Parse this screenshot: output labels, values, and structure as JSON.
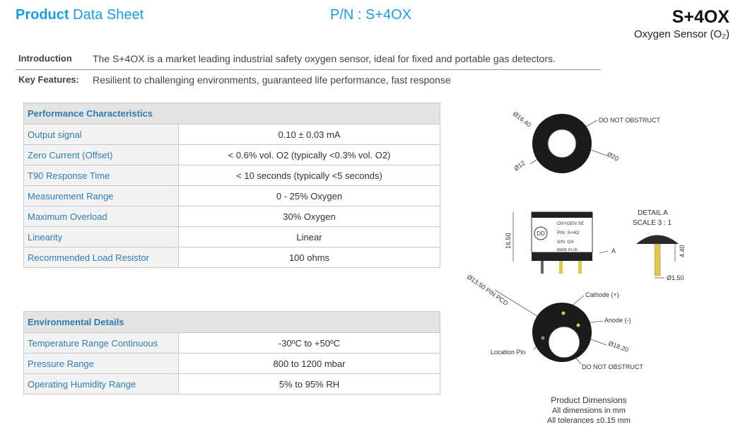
{
  "header": {
    "product": "Product",
    "data_sheet": "Data Sheet",
    "part_number": "P/N : S+4OX",
    "model": "S+4OX",
    "subtitle": "Oxygen Sensor (O₂)"
  },
  "intro": {
    "label": "Introduction",
    "text": "The S+4OX is a market leading industrial safety oxygen sensor, ideal for fixed and portable gas detectors."
  },
  "features": {
    "label": "Key Features:",
    "text": "Resilient to challenging environments, guaranteed life performance, fast response"
  },
  "performance": {
    "title": "Performance Characteristics",
    "rows": [
      [
        "Output signal",
        "0.10 ± 0.03 mA"
      ],
      [
        "Zero Current (Offset)",
        "< 0.6% vol. O2 (typically <0.3% vol. O2)"
      ],
      [
        "T90 Response Time",
        "< 10 seconds (typically <5 seconds)"
      ],
      [
        "Measurement Range",
        "0 - 25% Oxygen"
      ],
      [
        "Maximum Overload",
        "30% Oxygen"
      ],
      [
        "Linearity",
        "Linear"
      ],
      [
        "Recommended Load Resistor",
        "100 ohms"
      ]
    ]
  },
  "environmental": {
    "title": "Environmental Details",
    "rows": [
      [
        "Temperature Range Continuous",
        "-30ºC to +50ºC"
      ],
      [
        "Pressure Range",
        "800 to 1200 mbar"
      ],
      [
        "Operating Humidity Range",
        "5% to 95% RH"
      ]
    ]
  },
  "drawing": {
    "top_dia_outer_hole": "Ø16.40",
    "top_do_not_obstruct": "DO NOT OBSTRUCT",
    "top_dia_hole": "Ø12",
    "top_dia_body": "Ø20",
    "side_height": "16.50",
    "side_label_1": "OXYGEN SE",
    "side_label_2": "P/N: S+4O",
    "side_label_3": "S/N: OX",
    "side_label_4": "MADE IN UK",
    "side_logo": "DD",
    "side_detail_marker": "A",
    "detail_title": "DETAIL A",
    "detail_scale": "SCALE 3 : 1",
    "detail_height": "4.40",
    "detail_dia": "Ø1.50",
    "bottom_pcd": "Ø13.50 PIN PCD",
    "bottom_cathode": "Cathode (+)",
    "bottom_anode": "Anode (-)",
    "bottom_dia": "Ø18.20",
    "bottom_location_pin": "Location Pin",
    "bottom_do_not_obstruct": "DO NOT OBSTRUCT"
  },
  "dimensions": {
    "title": "Product Dimensions",
    "notes": [
      "All dimensions in mm",
      "All tolerances ±0.15 mm"
    ]
  }
}
